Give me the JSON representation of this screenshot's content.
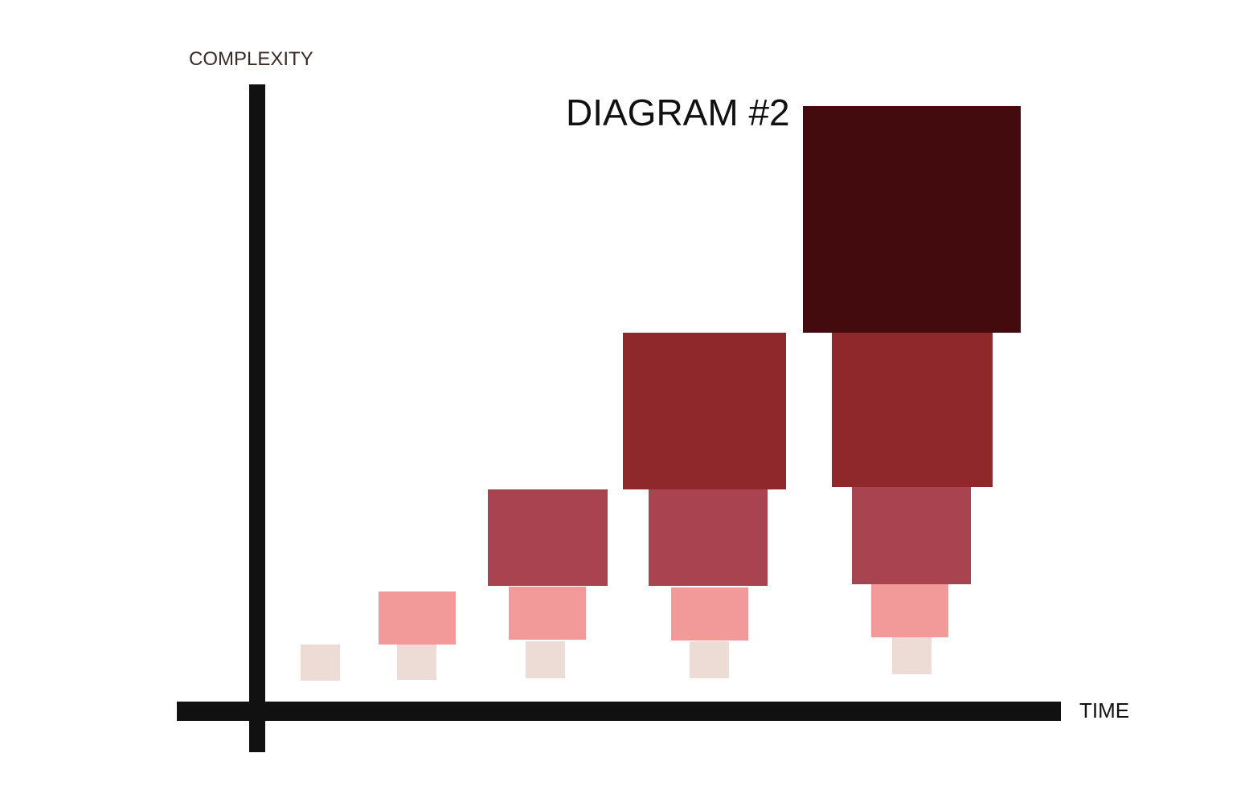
{
  "title": "DIAGRAM #2",
  "y_axis_label": "COMPLEXITY",
  "x_axis_label": "TIME"
}
